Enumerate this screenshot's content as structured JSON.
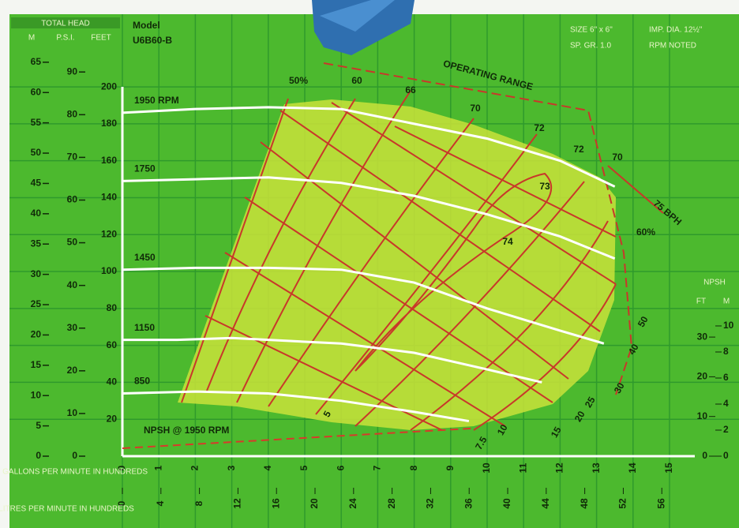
{
  "header": {
    "total_head": "TOTAL HEAD",
    "m": "M",
    "psi": "P.S.I.",
    "feet": "FEET",
    "model_label": "Model",
    "model": "U6B60-B",
    "size": "SIZE 6\" x 6\"",
    "imp_dia": "IMP. DIA. 12½\"",
    "sp_gr": "SP. GR. 1.0",
    "rpm_noted": "RPM NOTED"
  },
  "chart_data": {
    "type": "line",
    "x_label": "U.S. GALLONS PER MINUTE IN HUNDREDS",
    "x2_label": "LITRES PER MINUTE IN HUNDREDS",
    "xlim": [
      0,
      15
    ],
    "xticks": [
      0,
      1,
      2,
      3,
      4,
      5,
      6,
      7,
      8,
      9,
      10,
      11,
      12,
      13,
      14,
      15
    ],
    "x2lim": [
      0,
      56.8
    ],
    "x2ticks": [
      0,
      4,
      8,
      12,
      16,
      20,
      24,
      28,
      32,
      36,
      40,
      44,
      48,
      52,
      56
    ],
    "ylim": [
      0,
      215
    ],
    "yticks": [
      20,
      40,
      60,
      80,
      100,
      120,
      140,
      160,
      180,
      200
    ],
    "m_lim": [
      0,
      65.5
    ],
    "m_ticks": [
      0,
      5,
      10,
      15,
      20,
      25,
      30,
      35,
      40,
      45,
      50,
      55,
      60,
      65
    ],
    "psi_lim": [
      0,
      93
    ],
    "psi_ticks": [
      0,
      10,
      20,
      30,
      40,
      50,
      60,
      70,
      80,
      90
    ],
    "y2_label": "NPSH",
    "y2_unit_ft": "FT",
    "y2_unit_m": "M",
    "y2lim": [
      0,
      100
    ],
    "y2ticks": [
      0,
      10,
      20,
      30
    ],
    "m2_lim": [
      0,
      30.48
    ],
    "m2_ticks": [
      0,
      2,
      4,
      6,
      8,
      10
    ],
    "grid": true,
    "series": [
      {
        "name": "1950 RPM",
        "color": "#ffffff",
        "x": [
          0,
          2,
          4,
          6,
          8,
          10,
          12,
          13.5
        ],
        "values": [
          186,
          188,
          189,
          188,
          180,
          172,
          160,
          146
        ]
      },
      {
        "name": "1750",
        "color": "#ffffff",
        "x": [
          0,
          2,
          4,
          6,
          8,
          10,
          12,
          13.5
        ],
        "values": [
          149,
          150,
          151,
          148,
          141,
          131,
          119,
          107
        ]
      },
      {
        "name": "1450",
        "color": "#ffffff",
        "x": [
          0,
          2,
          4,
          6,
          8,
          10,
          12,
          13.2
        ],
        "values": [
          101,
          102,
          102,
          101,
          94,
          80,
          68,
          61
        ]
      },
      {
        "name": "1150",
        "color": "#ffffff",
        "x": [
          0,
          1.5,
          3,
          6,
          8,
          10,
          11.5
        ],
        "values": [
          63,
          63,
          64,
          61,
          56,
          47,
          40
        ]
      },
      {
        "name": "850",
        "color": "#ffffff",
        "x": [
          0,
          2,
          4,
          6,
          8,
          9.5
        ],
        "values": [
          34,
          35,
          34,
          30,
          24,
          19
        ]
      },
      {
        "name": "NPSH @ 1950 RPM",
        "color": "#d83a2a",
        "axis": "y2",
        "x": [
          0,
          9.6
        ],
        "values": [
          2,
          7
        ]
      }
    ],
    "operating_range": "OPERATING RANGE",
    "efficiency_labels": [
      "50%",
      "60",
      "66",
      "70",
      "72",
      "72",
      "73",
      "74",
      "70",
      "60%"
    ],
    "bhp_labels": [
      "5",
      "7.5",
      "10",
      "15",
      "20",
      "25",
      "30",
      "40",
      "50",
      "75 BPH"
    ]
  }
}
